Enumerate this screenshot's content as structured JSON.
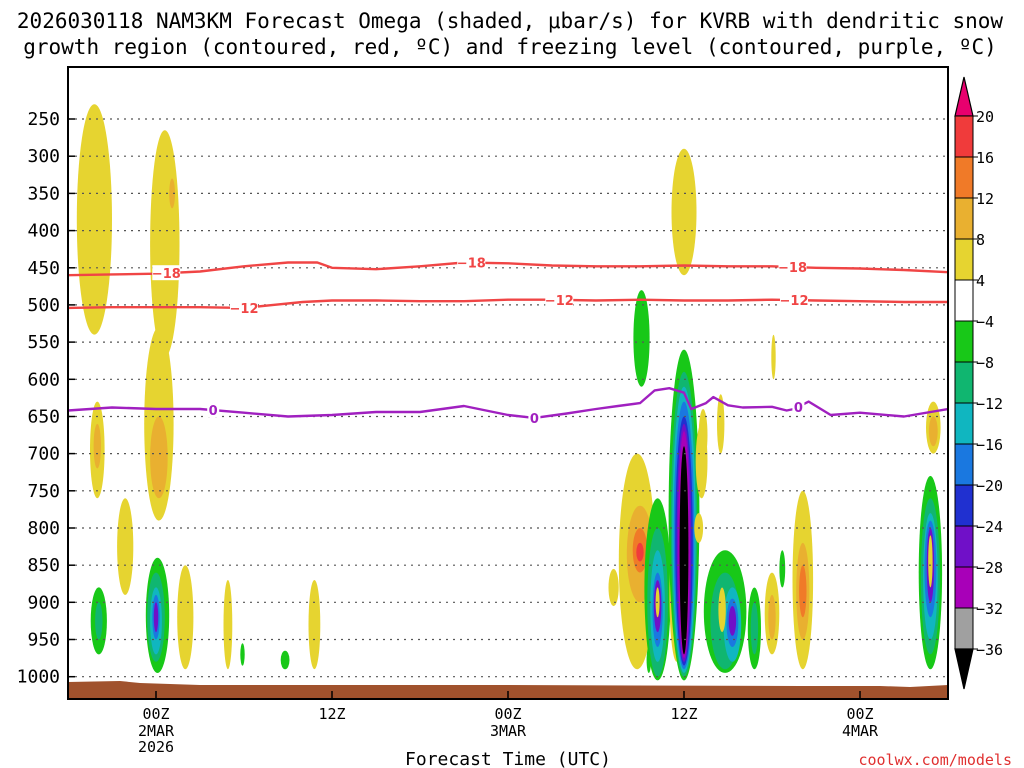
{
  "chart_data": {
    "type": "heatmap",
    "title": {
      "line1": "2026030118 NAM3KM Forecast Omega (shaded, μbar/s) for KVRB with dendritic snow",
      "line2": "growth region (contoured, red, ºC) and freezing level (contoured, purple, ºC)"
    },
    "xlabel": "Forecast Time (UTC)",
    "credit": "coolwx.com/models",
    "x_range_hours": [
      -6,
      54
    ],
    "x_ticks": [
      {
        "hour": 0,
        "label": "00Z",
        "sub1": "2MAR",
        "sub2": "2026"
      },
      {
        "hour": 12,
        "label": "12Z",
        "sub1": "",
        "sub2": ""
      },
      {
        "hour": 24,
        "label": "00Z",
        "sub1": "3MAR",
        "sub2": ""
      },
      {
        "hour": 36,
        "label": "12Z",
        "sub1": "",
        "sub2": ""
      },
      {
        "hour": 48,
        "label": "00Z",
        "sub1": "4MAR",
        "sub2": ""
      }
    ],
    "y_range_hpa": [
      1030,
      180
    ],
    "y_ticks": [
      {
        "p": 250,
        "label": "250"
      },
      {
        "p": 300,
        "label": "300"
      },
      {
        "p": 350,
        "label": "350"
      },
      {
        "p": 400,
        "label": "400"
      },
      {
        "p": 450,
        "label": "450"
      },
      {
        "p": 500,
        "label": "500"
      },
      {
        "p": 550,
        "label": "550"
      },
      {
        "p": 600,
        "label": "600"
      },
      {
        "p": 650,
        "label": "650"
      },
      {
        "p": 700,
        "label": "700"
      },
      {
        "p": 750,
        "label": "750"
      },
      {
        "p": 800,
        "label": "800"
      },
      {
        "p": 850,
        "label": "850"
      },
      {
        "p": 900,
        "label": "900"
      },
      {
        "p": 950,
        "label": "950"
      },
      {
        "p": 1000,
        "label": "1000"
      }
    ],
    "colorbar": {
      "levels": [
        "20",
        "16",
        "12",
        "8",
        "4",
        "−4",
        "−8",
        "−12",
        "−16",
        "−20",
        "−24",
        "−28",
        "−32",
        "−36"
      ],
      "colors": [
        "#e8006e",
        "#f03b3b",
        "#f07a28",
        "#e9b030",
        "#e6d430",
        "#ffffff",
        "#18c818",
        "#10b670",
        "#10b6c0",
        "#1a78e0",
        "#2030d0",
        "#7010c8",
        "#a800b8",
        "#a0a0a0",
        "#000000"
      ]
    },
    "contours": [
      {
        "name": "-18C",
        "color": "#f04545",
        "label": "−18",
        "label_hours": [
          0.7,
          21.5,
          43.4
        ],
        "points": [
          [
            -6,
            460
          ],
          [
            -3,
            459
          ],
          [
            0,
            458
          ],
          [
            3,
            455
          ],
          [
            6,
            448
          ],
          [
            9,
            443
          ],
          [
            11,
            443
          ],
          [
            12,
            450
          ],
          [
            15,
            452
          ],
          [
            18,
            448
          ],
          [
            21,
            443
          ],
          [
            24,
            444
          ],
          [
            27,
            447
          ],
          [
            30,
            448
          ],
          [
            33,
            448
          ],
          [
            36,
            447
          ],
          [
            39,
            448
          ],
          [
            42,
            448
          ],
          [
            45,
            450
          ],
          [
            48,
            451
          ],
          [
            51,
            453
          ],
          [
            54,
            456
          ]
        ]
      },
      {
        "name": "-12C",
        "color": "#f04545",
        "label": "−12",
        "label_hours": [
          6,
          27.5,
          43.5
        ],
        "points": [
          [
            -6,
            504
          ],
          [
            -3,
            503
          ],
          [
            0,
            503
          ],
          [
            3,
            503
          ],
          [
            6,
            504
          ],
          [
            8,
            500
          ],
          [
            10,
            496
          ],
          [
            12,
            494
          ],
          [
            15,
            494
          ],
          [
            18,
            495
          ],
          [
            21,
            495
          ],
          [
            24,
            493
          ],
          [
            27,
            493
          ],
          [
            30,
            494
          ],
          [
            33,
            493
          ],
          [
            36,
            494
          ],
          [
            39,
            494
          ],
          [
            42,
            493
          ],
          [
            45,
            494
          ],
          [
            48,
            495
          ],
          [
            51,
            496
          ],
          [
            54,
            496
          ]
        ]
      },
      {
        "name": "0C freezing level",
        "color": "#a020c0",
        "label": "0",
        "label_hours": [
          3.9,
          25.8,
          43.8
        ],
        "points": [
          [
            -6,
            642
          ],
          [
            -3,
            638
          ],
          [
            0,
            640
          ],
          [
            3,
            640
          ],
          [
            6,
            645
          ],
          [
            9,
            650
          ],
          [
            12,
            648
          ],
          [
            15,
            644
          ],
          [
            18,
            644
          ],
          [
            21,
            636
          ],
          [
            24,
            648
          ],
          [
            25.8,
            652
          ],
          [
            28,
            646
          ],
          [
            30,
            640
          ],
          [
            31.5,
            636
          ],
          [
            33,
            632
          ],
          [
            34,
            615
          ],
          [
            35,
            612
          ],
          [
            36,
            618
          ],
          [
            36.5,
            640
          ],
          [
            37.5,
            632
          ],
          [
            38,
            624
          ],
          [
            39,
            635
          ],
          [
            40,
            638
          ],
          [
            42,
            637
          ],
          [
            43,
            642
          ],
          [
            43.5,
            640
          ],
          [
            44.5,
            630
          ],
          [
            46,
            648
          ],
          [
            48,
            645
          ],
          [
            51,
            650
          ],
          [
            54,
            640
          ]
        ]
      }
    ],
    "omega_regions": [
      {
        "t": -4.2,
        "p0": 230,
        "p1": 540,
        "w": 2.4,
        "v": 4
      },
      {
        "t": -4.0,
        "p0": 630,
        "p1": 760,
        "w": 1.0,
        "v": 4
      },
      {
        "t": -4.0,
        "p0": 660,
        "p1": 720,
        "w": 0.5,
        "v": 8
      },
      {
        "t": -3.9,
        "p0": 880,
        "p1": 970,
        "w": 1.1,
        "v": -8
      },
      {
        "t": -3.9,
        "p0": 900,
        "p1": 950,
        "w": 0.5,
        "v": -12
      },
      {
        "t": -2.1,
        "p0": 760,
        "p1": 890,
        "w": 1.1,
        "v": 4
      },
      {
        "t": 0.6,
        "p0": 265,
        "p1": 570,
        "w": 2.0,
        "v": 4
      },
      {
        "t": 0.2,
        "p0": 530,
        "p1": 790,
        "w": 2.0,
        "v": 4
      },
      {
        "t": 0.2,
        "p0": 650,
        "p1": 760,
        "w": 1.2,
        "v": 8
      },
      {
        "t": 0.1,
        "p0": 840,
        "p1": 995,
        "w": 1.6,
        "v": -8
      },
      {
        "t": 0.0,
        "p0": 860,
        "p1": 980,
        "w": 1.2,
        "v": -12
      },
      {
        "t": 0.0,
        "p0": 880,
        "p1": 970,
        "w": 0.8,
        "v": -16
      },
      {
        "t": 0.0,
        "p0": 890,
        "p1": 950,
        "w": 0.5,
        "v": -20
      },
      {
        "t": 0.0,
        "p0": 900,
        "p1": 940,
        "w": 0.3,
        "v": -28
      },
      {
        "t": 1.1,
        "p0": 330,
        "p1": 370,
        "w": 0.4,
        "v": 8
      },
      {
        "t": 2.0,
        "p0": 850,
        "p1": 990,
        "w": 1.1,
        "v": 4
      },
      {
        "t": 4.9,
        "p0": 870,
        "p1": 990,
        "w": 0.6,
        "v": 4
      },
      {
        "t": 5.9,
        "p0": 955,
        "p1": 985,
        "w": 0.3,
        "v": -8
      },
      {
        "t": 8.8,
        "p0": 965,
        "p1": 990,
        "w": 0.6,
        "v": -8
      },
      {
        "t": 10.8,
        "p0": 870,
        "p1": 990,
        "w": 0.8,
        "v": 4
      },
      {
        "t": 31.2,
        "p0": 855,
        "p1": 905,
        "w": 0.7,
        "v": 4
      },
      {
        "t": 33.1,
        "p0": 480,
        "p1": 610,
        "w": 1.1,
        "v": -8
      },
      {
        "t": 32.8,
        "p0": 700,
        "p1": 990,
        "w": 2.5,
        "v": 4
      },
      {
        "t": 33.0,
        "p0": 770,
        "p1": 900,
        "w": 1.8,
        "v": 8
      },
      {
        "t": 33.0,
        "p0": 800,
        "p1": 860,
        "w": 1.0,
        "v": 12
      },
      {
        "t": 33.0,
        "p0": 820,
        "p1": 845,
        "w": 0.5,
        "v": 16
      },
      {
        "t": 33.6,
        "p0": 960,
        "p1": 995,
        "w": 0.3,
        "v": -8
      },
      {
        "t": 34.2,
        "p0": 760,
        "p1": 1005,
        "w": 1.8,
        "v": -8
      },
      {
        "t": 34.2,
        "p0": 800,
        "p1": 1000,
        "w": 1.4,
        "v": -12
      },
      {
        "t": 34.2,
        "p0": 830,
        "p1": 980,
        "w": 1.0,
        "v": -16
      },
      {
        "t": 34.2,
        "p0": 860,
        "p1": 960,
        "w": 0.7,
        "v": -20
      },
      {
        "t": 34.2,
        "p0": 870,
        "p1": 940,
        "w": 0.5,
        "v": -28
      },
      {
        "t": 34.2,
        "p0": 880,
        "p1": 920,
        "w": 0.2,
        "v": 4
      },
      {
        "t": 35.5,
        "p0": 800,
        "p1": 980,
        "w": 1.0,
        "v": 4
      },
      {
        "t": 35.5,
        "p0": 840,
        "p1": 940,
        "w": 0.6,
        "v": 8
      },
      {
        "t": 36.0,
        "p0": 290,
        "p1": 460,
        "w": 1.7,
        "v": 4
      },
      {
        "t": 36.0,
        "p0": 560,
        "p1": 1005,
        "w": 2.1,
        "v": -8
      },
      {
        "t": 36.0,
        "p0": 590,
        "p1": 1000,
        "w": 1.8,
        "v": -12
      },
      {
        "t": 36.0,
        "p0": 610,
        "p1": 995,
        "w": 1.6,
        "v": -16
      },
      {
        "t": 36.0,
        "p0": 630,
        "p1": 990,
        "w": 1.4,
        "v": -20
      },
      {
        "t": 36.0,
        "p0": 650,
        "p1": 985,
        "w": 1.2,
        "v": -24
      },
      {
        "t": 36.0,
        "p0": 660,
        "p1": 980,
        "w": 1.0,
        "v": -28
      },
      {
        "t": 36.0,
        "p0": 670,
        "p1": 975,
        "w": 0.8,
        "v": -32
      },
      {
        "t": 36.0,
        "p0": 690,
        "p1": 970,
        "w": 0.6,
        "v": -36
      },
      {
        "t": 37.2,
        "p0": 660,
        "p1": 760,
        "w": 0.8,
        "v": 4
      },
      {
        "t": 38.8,
        "p0": 830,
        "p1": 995,
        "w": 2.9,
        "v": -8
      },
      {
        "t": 38.8,
        "p0": 860,
        "p1": 990,
        "w": 2.0,
        "v": -12
      },
      {
        "t": 39.3,
        "p0": 880,
        "p1": 980,
        "w": 1.2,
        "v": -16
      },
      {
        "t": 39.3,
        "p0": 895,
        "p1": 960,
        "w": 0.8,
        "v": -20
      },
      {
        "t": 39.3,
        "p0": 905,
        "p1": 945,
        "w": 0.5,
        "v": -28
      },
      {
        "t": 38.6,
        "p0": 880,
        "p1": 940,
        "w": 0.5,
        "v": 4
      },
      {
        "t": 37.0,
        "p0": 780,
        "p1": 820,
        "w": 0.6,
        "v": 4
      },
      {
        "t": 40.8,
        "p0": 880,
        "p1": 990,
        "w": 0.9,
        "v": -8
      },
      {
        "t": 40.8,
        "p0": 900,
        "p1": 970,
        "w": 0.5,
        "v": -12
      },
      {
        "t": 42.0,
        "p0": 860,
        "p1": 970,
        "w": 1.0,
        "v": 4
      },
      {
        "t": 42.0,
        "p0": 890,
        "p1": 950,
        "w": 0.5,
        "v": 8
      },
      {
        "t": 42.7,
        "p0": 830,
        "p1": 880,
        "w": 0.4,
        "v": -8
      },
      {
        "t": 44.1,
        "p0": 750,
        "p1": 990,
        "w": 1.4,
        "v": 4
      },
      {
        "t": 44.1,
        "p0": 820,
        "p1": 950,
        "w": 0.9,
        "v": 8
      },
      {
        "t": 44.1,
        "p0": 850,
        "p1": 920,
        "w": 0.5,
        "v": 12
      },
      {
        "t": 37.3,
        "p0": 640,
        "p1": 710,
        "w": 0.6,
        "v": 4
      },
      {
        "t": 38.5,
        "p0": 620,
        "p1": 700,
        "w": 0.5,
        "v": 4
      },
      {
        "t": 42.1,
        "p0": 540,
        "p1": 600,
        "w": 0.3,
        "v": 4
      },
      {
        "t": 53.0,
        "p0": 630,
        "p1": 700,
        "w": 1.0,
        "v": 4
      },
      {
        "t": 53.0,
        "p0": 650,
        "p1": 690,
        "w": 0.6,
        "v": 8
      },
      {
        "t": 52.8,
        "p0": 730,
        "p1": 990,
        "w": 1.6,
        "v": -8
      },
      {
        "t": 52.8,
        "p0": 760,
        "p1": 970,
        "w": 1.3,
        "v": -12
      },
      {
        "t": 52.8,
        "p0": 780,
        "p1": 950,
        "w": 1.0,
        "v": -16
      },
      {
        "t": 52.8,
        "p0": 790,
        "p1": 920,
        "w": 0.8,
        "v": -20
      },
      {
        "t": 52.8,
        "p0": 800,
        "p1": 900,
        "w": 0.5,
        "v": -28
      },
      {
        "t": 52.8,
        "p0": 810,
        "p1": 880,
        "w": 0.3,
        "v": 4
      }
    ]
  }
}
